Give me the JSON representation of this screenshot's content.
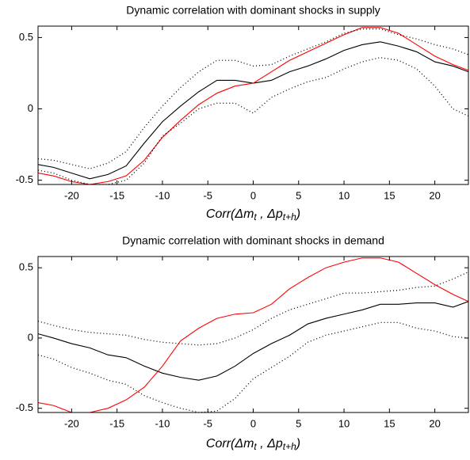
{
  "chart_data": [
    {
      "type": "line",
      "title": "Dynamic correlation with dominant shocks in supply",
      "x_label": [
        "Corr(Δm",
        "t",
        " , Δp",
        "t+h",
        ")"
      ],
      "x": [
        -23.7,
        -22,
        -20,
        -18,
        -16,
        -14,
        -12,
        -10,
        -8,
        -6,
        -4,
        -2,
        0,
        2,
        4,
        6,
        8,
        10,
        12,
        14,
        16,
        18,
        20,
        22,
        23.7
      ],
      "xlim": [
        -23.7,
        23.7
      ],
      "xticks": [
        -20,
        -15,
        -10,
        -5,
        0,
        5,
        10,
        15,
        20
      ],
      "ylim": [
        -0.53,
        0.58
      ],
      "yticks": [
        -0.5,
        0,
        0.5
      ],
      "series": [
        {
          "color": "#000000",
          "dash": "solid",
          "values": [
            -0.39,
            -0.41,
            -0.45,
            -0.49,
            -0.46,
            -0.4,
            -0.24,
            -0.09,
            0.02,
            0.12,
            0.2,
            0.2,
            0.18,
            0.2,
            0.26,
            0.3,
            0.35,
            0.41,
            0.45,
            0.47,
            0.44,
            0.4,
            0.33,
            0.3,
            0.26
          ]
        },
        {
          "color": "#ff0000",
          "dash": "solid",
          "values": [
            -0.45,
            -0.47,
            -0.51,
            -0.53,
            -0.51,
            -0.47,
            -0.36,
            -0.2,
            -0.08,
            0.03,
            0.11,
            0.16,
            0.18,
            0.26,
            0.34,
            0.4,
            0.46,
            0.52,
            0.57,
            0.57,
            0.53,
            0.45,
            0.37,
            0.31,
            0.27
          ]
        },
        {
          "color": "#000000",
          "dash": "dotted",
          "values": [
            -0.35,
            -0.36,
            -0.39,
            -0.42,
            -0.38,
            -0.3,
            -0.13,
            0.02,
            0.15,
            0.26,
            0.34,
            0.34,
            0.3,
            0.31,
            0.37,
            0.42,
            0.47,
            0.53,
            0.56,
            0.56,
            0.52,
            0.49,
            0.45,
            0.42,
            0.38
          ]
        },
        {
          "color": "#000000",
          "dash": "dotted",
          "values": [
            -0.43,
            -0.45,
            -0.5,
            -0.53,
            -0.53,
            -0.5,
            -0.38,
            -0.19,
            -0.1,
            0.0,
            0.04,
            0.04,
            -0.03,
            0.08,
            0.14,
            0.19,
            0.22,
            0.28,
            0.33,
            0.36,
            0.34,
            0.28,
            0.16,
            0.0,
            -0.05
          ]
        }
      ]
    },
    {
      "type": "line",
      "title": "Dynamic correlation with dominant shocks in demand",
      "x_label": [
        "Corr(Δm",
        "t",
        " , Δp",
        "t+h",
        ")"
      ],
      "x": [
        -23.7,
        -22,
        -20,
        -18,
        -16,
        -14,
        -12,
        -10,
        -8,
        -6,
        -4,
        -2,
        0,
        2,
        4,
        6,
        8,
        10,
        12,
        14,
        16,
        18,
        20,
        22,
        23.7
      ],
      "xlim": [
        -23.7,
        23.7
      ],
      "xticks": [
        -20,
        -15,
        -10,
        -5,
        0,
        5,
        10,
        15,
        20
      ],
      "ylim": [
        -0.53,
        0.58
      ],
      "yticks": [
        -0.5,
        0,
        0.5
      ],
      "series": [
        {
          "color": "#000000",
          "dash": "solid",
          "values": [
            0.03,
            0.0,
            -0.04,
            -0.07,
            -0.12,
            -0.14,
            -0.2,
            -0.25,
            -0.28,
            -0.3,
            -0.27,
            -0.2,
            -0.11,
            -0.04,
            0.02,
            0.1,
            0.14,
            0.17,
            0.2,
            0.24,
            0.24,
            0.25,
            0.25,
            0.22,
            0.26
          ]
        },
        {
          "color": "#ff0000",
          "dash": "solid",
          "values": [
            -0.46,
            -0.48,
            -0.53,
            -0.53,
            -0.5,
            -0.44,
            -0.35,
            -0.2,
            -0.02,
            0.07,
            0.14,
            0.17,
            0.18,
            0.24,
            0.35,
            0.43,
            0.5,
            0.54,
            0.57,
            0.57,
            0.54,
            0.46,
            0.38,
            0.31,
            0.26
          ]
        },
        {
          "color": "#000000",
          "dash": "dotted",
          "values": [
            0.12,
            0.09,
            0.06,
            0.04,
            0.03,
            0.02,
            -0.01,
            -0.03,
            -0.04,
            -0.05,
            -0.04,
            0.0,
            0.06,
            0.14,
            0.2,
            0.24,
            0.28,
            0.32,
            0.32,
            0.33,
            0.34,
            0.36,
            0.37,
            0.42,
            0.47
          ]
        },
        {
          "color": "#000000",
          "dash": "dotted",
          "values": [
            -0.12,
            -0.15,
            -0.21,
            -0.25,
            -0.3,
            -0.33,
            -0.41,
            -0.46,
            -0.5,
            -0.53,
            -0.52,
            -0.43,
            -0.29,
            -0.21,
            -0.13,
            -0.03,
            0.02,
            0.05,
            0.08,
            0.11,
            0.11,
            0.07,
            0.05,
            0.01,
            0.0
          ]
        }
      ]
    }
  ]
}
